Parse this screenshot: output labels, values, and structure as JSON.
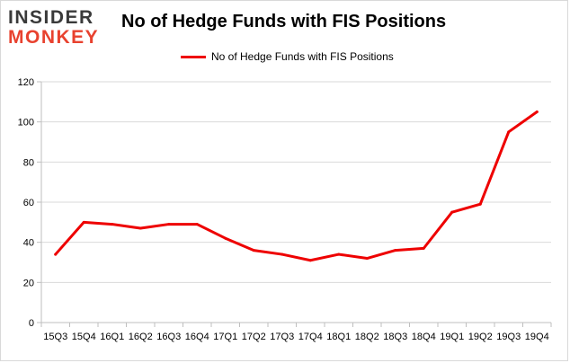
{
  "logo": {
    "line1": "INSIDER",
    "line2": "MONKEY"
  },
  "colors": {
    "series": "#ee0000",
    "grid": "#d9d9d9",
    "logo_dark": "#3a3a3a",
    "logo_accent": "#e8422f"
  },
  "chart_data": {
    "type": "line",
    "title": "No of Hedge Funds with FIS Positions",
    "xlabel": "",
    "ylabel": "",
    "legend_position": "top",
    "grid": true,
    "ylim": [
      0,
      120
    ],
    "yticks": [
      0,
      20,
      40,
      60,
      80,
      100,
      120
    ],
    "categories": [
      "15Q3",
      "15Q4",
      "16Q1",
      "16Q2",
      "16Q3",
      "16Q4",
      "17Q1",
      "17Q2",
      "17Q3",
      "17Q4",
      "18Q1",
      "18Q2",
      "18Q3",
      "18Q4",
      "19Q1",
      "19Q2",
      "19Q3",
      "19Q4"
    ],
    "series": [
      {
        "name": "No of Hedge Funds with FIS Positions",
        "values": [
          34,
          50,
          49,
          47,
          49,
          49,
          42,
          36,
          34,
          31,
          34,
          32,
          36,
          37,
          55,
          59,
          95,
          105
        ]
      }
    ]
  }
}
